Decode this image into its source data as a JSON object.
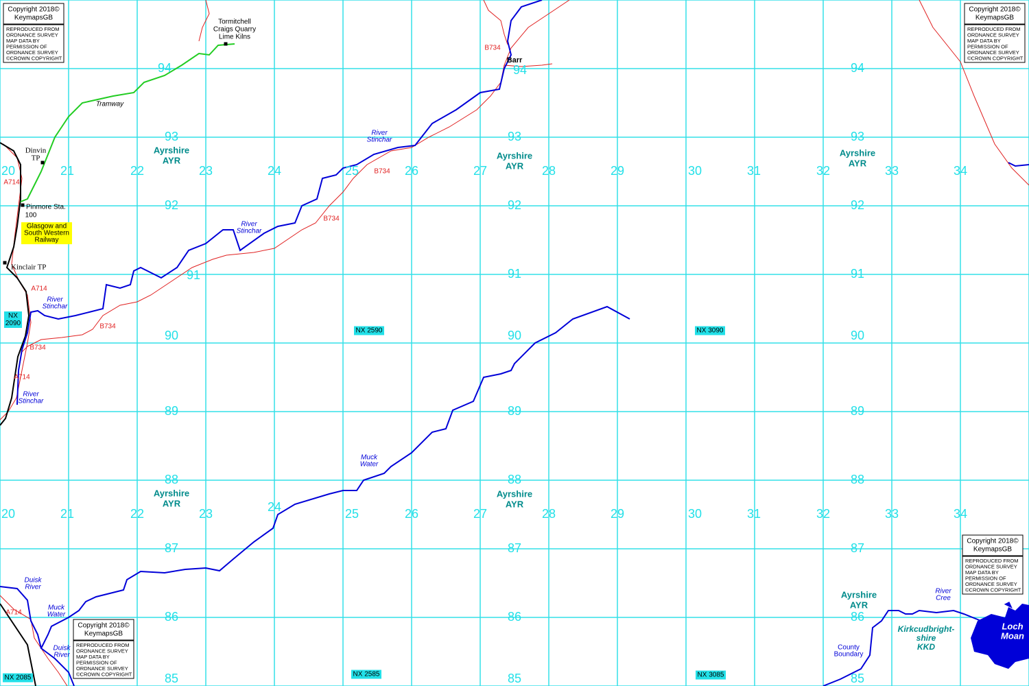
{
  "copyright": {
    "year_line": "Copyright 2018©",
    "brand": "KeymapsGB",
    "notice": [
      "REPRODUCED FROM",
      "ORDNANCE SURVEY",
      "MAP DATA BY",
      "PERMISSION OF",
      "ORDNANCE SURVEY",
      "©CROWN COPYRIGHT"
    ]
  },
  "grid": {
    "eastings": [
      20,
      21,
      22,
      23,
      24,
      25,
      26,
      27,
      28,
      29,
      30,
      31,
      32,
      33,
      34
    ],
    "northings": [
      94,
      93,
      92,
      91,
      90,
      89,
      88,
      87,
      86,
      85
    ],
    "squares": [
      [
        "NX",
        "2090"
      ],
      [
        "NX 2590"
      ],
      [
        "NX 3090"
      ],
      [
        "NX 2085"
      ],
      [
        "NX 2585"
      ],
      [
        "NX 3085"
      ]
    ]
  },
  "county": {
    "name": "Ayrshire",
    "code": "AYR"
  },
  "places": [
    [
      "Tormitchell",
      "Craigs Quarry",
      "Lime Kilns"
    ],
    [
      "Tramway"
    ],
    [
      "Dinvin",
      "TP"
    ],
    [
      "Pinmore Sta."
    ],
    [
      "100"
    ],
    [
      "Glasgow and",
      "South Western",
      "Railway"
    ],
    [
      "Kinclair TP"
    ],
    [
      "Barr"
    ],
    [
      "County",
      "Boundary"
    ],
    [
      "Loch",
      "Moan"
    ],
    [
      "Kirkcudbright-",
      "shire",
      "KKD"
    ]
  ],
  "rivers": [
    [
      "River",
      "Stinchar"
    ],
    [
      "Muck",
      "Water"
    ],
    [
      "Duisk",
      "River"
    ],
    [
      "River",
      "Cree"
    ]
  ],
  "roads": [
    "A714",
    "B734"
  ]
}
